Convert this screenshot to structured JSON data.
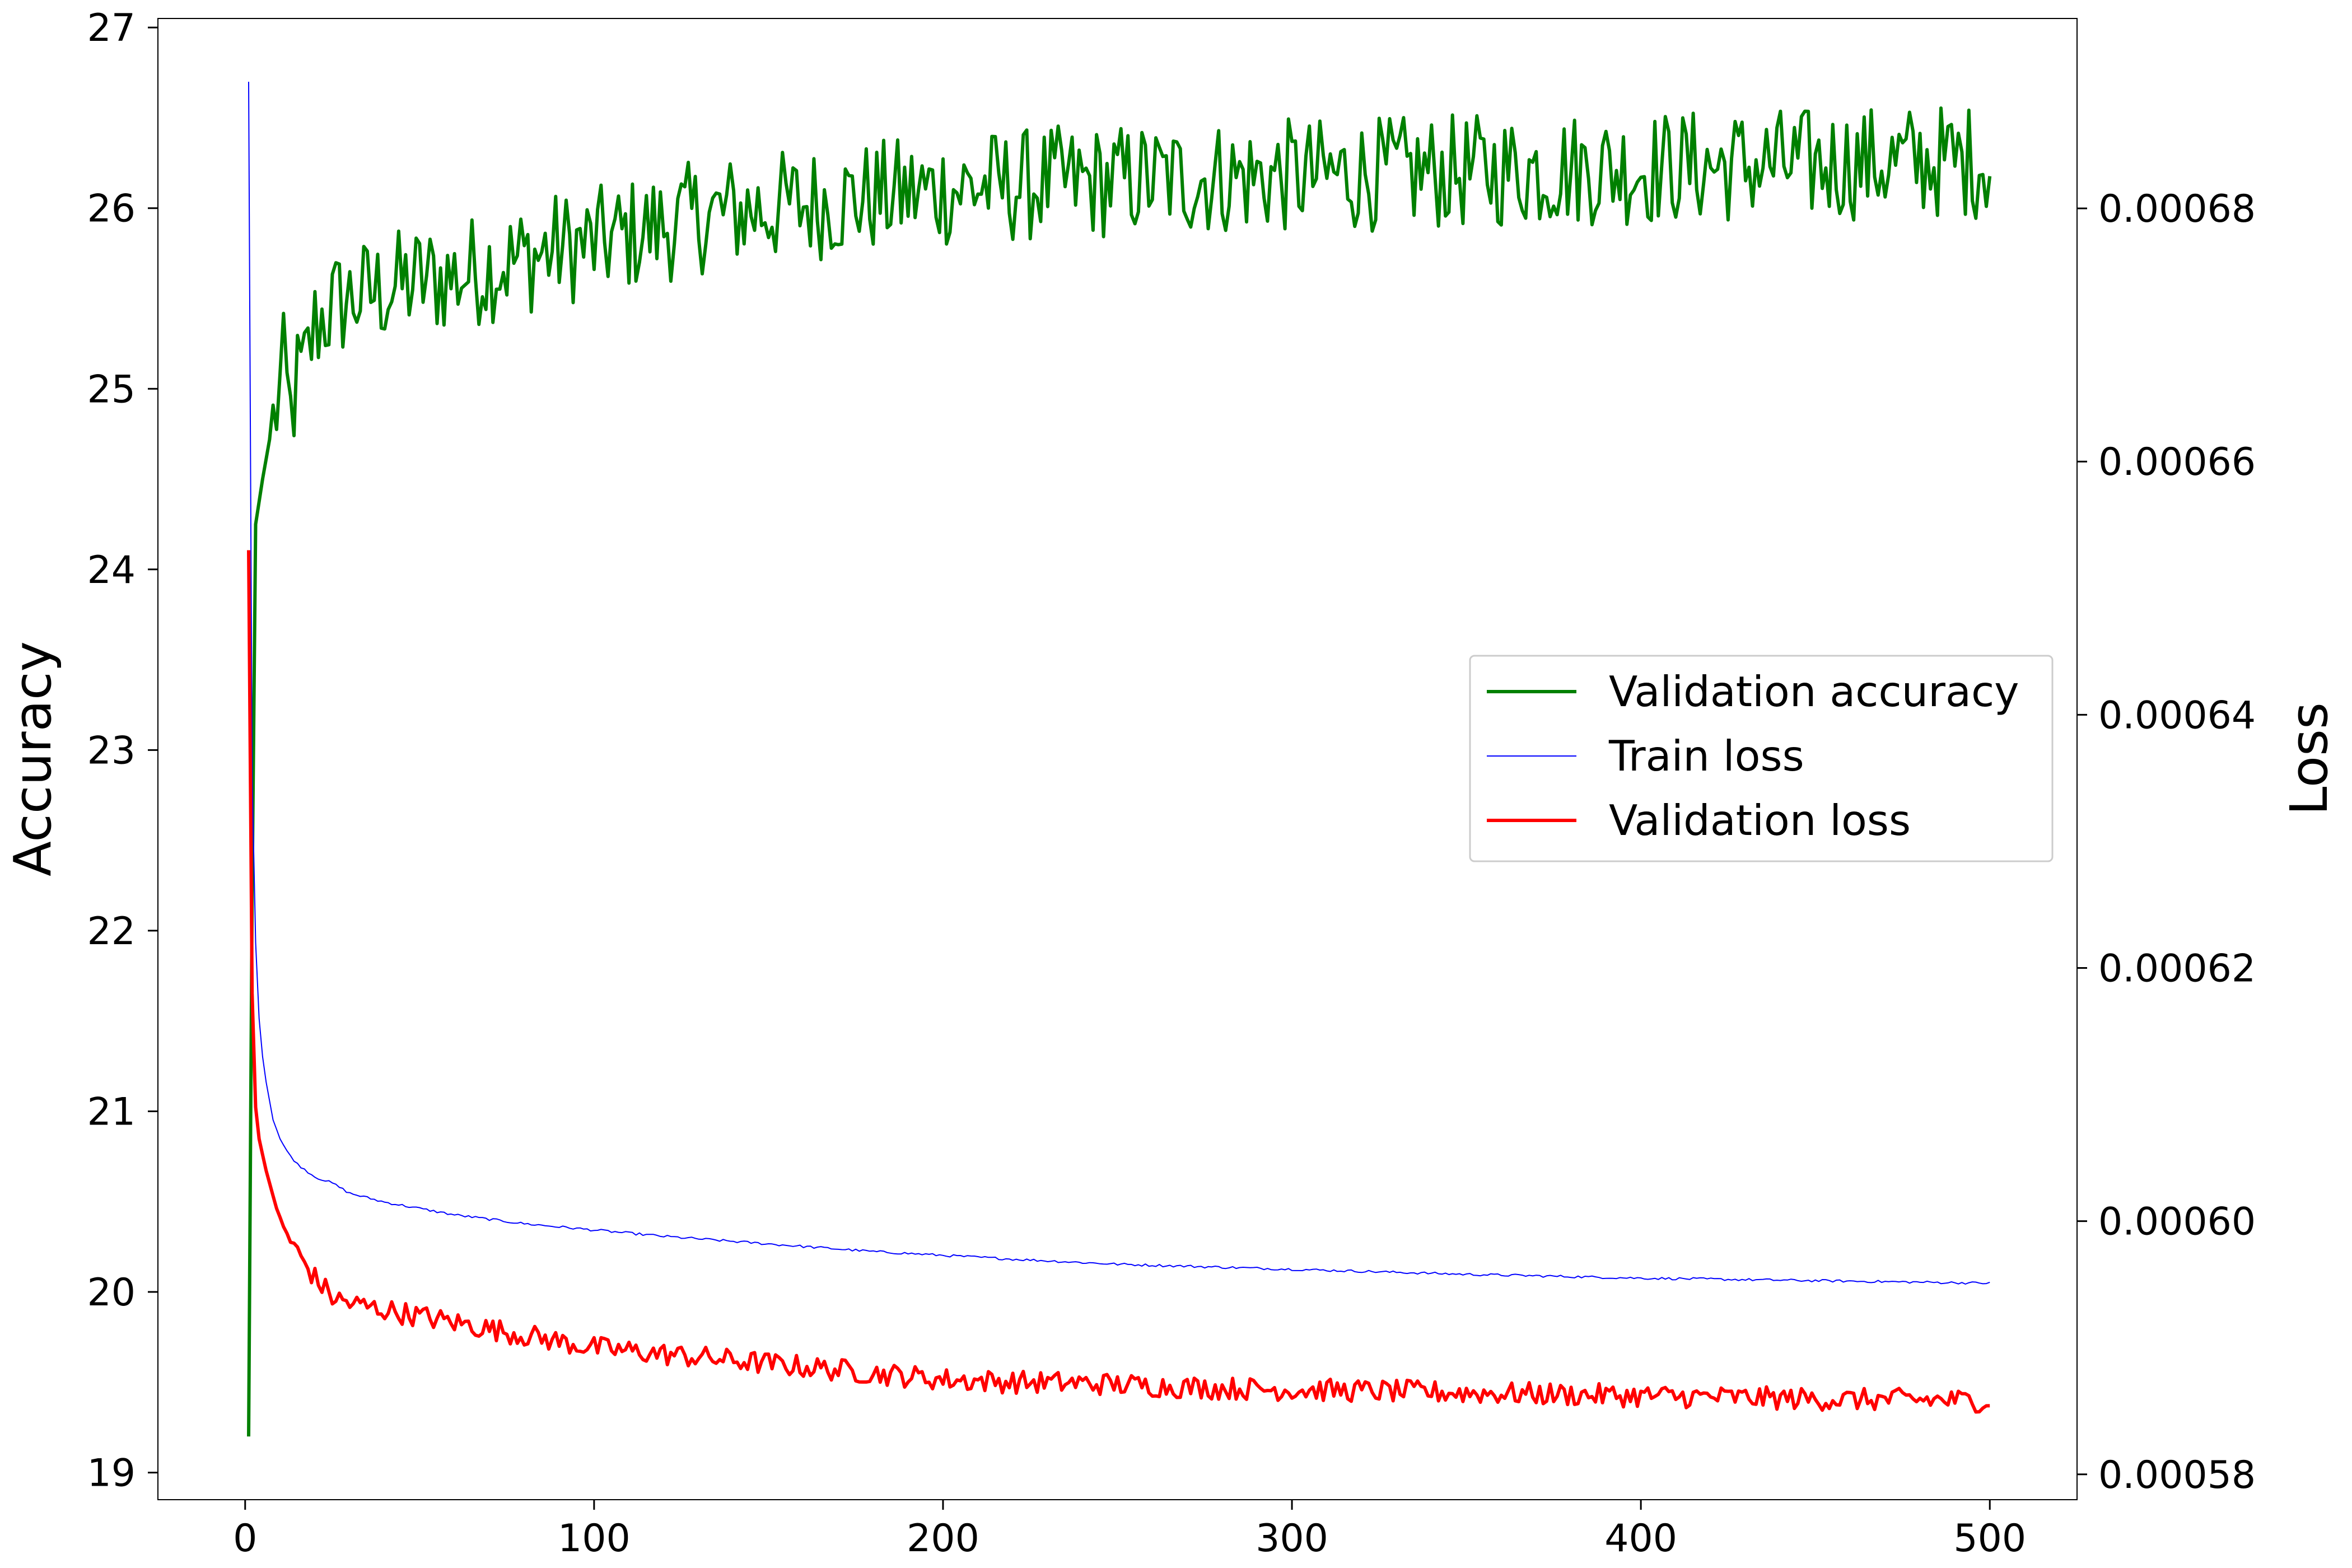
{
  "chart_data": {
    "type": "line",
    "title": "",
    "xlabel": "",
    "ylabel_left": "Accuracy",
    "ylabel_right": "Loss",
    "xlim": [
      -25,
      525
    ],
    "ylim_left": [
      18.85,
      27.05
    ],
    "ylim_right": [
      0.000578,
      0.000695
    ],
    "x_ticks": [
      0,
      100,
      200,
      300,
      400,
      500
    ],
    "y_ticks_left": [
      19,
      20,
      21,
      22,
      23,
      24,
      25,
      26,
      27
    ],
    "y_ticks_right": [
      0.00058,
      0.0006,
      0.00062,
      0.00064,
      0.00066,
      0.00068
    ],
    "y_tick_labels_right": [
      "0.00058",
      "0.00060",
      "0.00062",
      "0.00064",
      "0.00066",
      "0.00068"
    ],
    "grid": false,
    "legend_position": "center-right",
    "legend": [
      {
        "label": "Validation accuracy",
        "color": "#008000",
        "width": 6
      },
      {
        "label": "Train loss",
        "color": "#0000ff",
        "width": 2
      },
      {
        "label": "Validation loss",
        "color": "#ff0000",
        "width": 6
      }
    ],
    "series": [
      {
        "name": "Validation accuracy",
        "axis": "left",
        "color": "#008000",
        "x": [
          1,
          2,
          3,
          5,
          7,
          9,
          11,
          13,
          15,
          17,
          20,
          25,
          30,
          40,
          50,
          60,
          70,
          80,
          90,
          100,
          110,
          120,
          130,
          140,
          150,
          160,
          170,
          180,
          190,
          200,
          210,
          220,
          230,
          240,
          250,
          260,
          270,
          280,
          290,
          300,
          310,
          320,
          330,
          340,
          350,
          360,
          370,
          380,
          390,
          400,
          410,
          420,
          430,
          440,
          450,
          460,
          470,
          480,
          490,
          500
        ],
        "y": [
          19.2,
          22.2,
          24.25,
          24.5,
          24.72,
          24.9,
          25.1,
          24.85,
          25.05,
          25.1,
          25.35,
          25.45,
          25.5,
          25.55,
          25.6,
          25.62,
          25.68,
          25.72,
          25.78,
          25.8,
          25.85,
          25.9,
          25.95,
          25.98,
          26.0,
          26.02,
          26.04,
          26.06,
          26.08,
          26.1,
          26.12,
          26.12,
          26.14,
          26.14,
          26.15,
          26.16,
          26.16,
          26.17,
          26.17,
          26.18,
          26.18,
          26.19,
          26.19,
          26.2,
          26.2,
          26.21,
          26.21,
          26.22,
          26.22,
          26.22,
          26.23,
          26.23,
          26.24,
          26.24,
          26.24,
          26.25,
          26.25,
          26.26,
          26.26,
          26.26
        ],
        "spread": 0.32,
        "spread_start": 8
      },
      {
        "name": "Train loss",
        "axis": "right",
        "color": "#0000ff",
        "x": [
          1,
          2,
          3,
          4,
          5,
          6,
          8,
          10,
          12,
          15,
          20,
          25,
          30,
          40,
          50,
          60,
          80,
          100,
          120,
          150,
          180,
          200,
          220,
          250,
          300,
          350,
          400,
          450,
          500
        ],
        "y": [
          0.00069,
          0.000635,
          0.000622,
          0.000616,
          0.000613,
          0.000611,
          0.000608,
          0.0006065,
          0.0006055,
          0.0006045,
          0.0006035,
          0.000603,
          0.0006022,
          0.0006015,
          0.000601,
          0.0006005,
          0.0005998,
          0.0005993,
          0.0005988,
          0.0005982,
          0.0005976,
          0.0005973,
          0.000597,
          0.0005966,
          0.0005962,
          0.0005958,
          0.0005955,
          0.0005953,
          0.0005951
        ],
        "spread": 1e-07,
        "spread_start": 10
      },
      {
        "name": "Validation loss",
        "axis": "right",
        "color": "#ff0000",
        "x": [
          1,
          2,
          3,
          4,
          6,
          8,
          10,
          12,
          15,
          20,
          25,
          30,
          40,
          50,
          60,
          70,
          80,
          90,
          100,
          120,
          140,
          160,
          180,
          200,
          220,
          240,
          260,
          280,
          300,
          320,
          340,
          360,
          380,
          400,
          420,
          440,
          460,
          480,
          500
        ],
        "y": [
          0.000653,
          0.000618,
          0.000609,
          0.0006065,
          0.000604,
          0.000602,
          0.0006,
          0.000599,
          0.0005975,
          0.0005955,
          0.000594,
          0.0005935,
          0.000593,
          0.0005925,
          0.000592,
          0.0005915,
          0.000591,
          0.0005905,
          0.00059,
          0.0005895,
          0.000589,
          0.0005885,
          0.000588,
          0.0005875,
          0.0005873,
          0.0005872,
          0.000587,
          0.0005868,
          0.0005867,
          0.0005866,
          0.0005865,
          0.0005864,
          0.0005863,
          0.0005862,
          0.0005861,
          0.000586,
          0.0005859,
          0.0005859,
          0.0005858
        ],
        "spread": 9e-07,
        "spread_start": 10
      }
    ]
  }
}
